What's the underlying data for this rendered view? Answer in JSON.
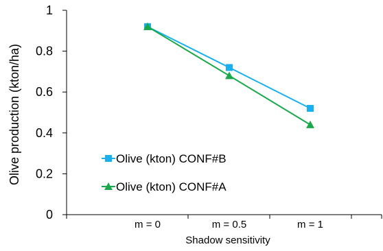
{
  "chart_data": {
    "type": "line",
    "categories": [
      "m = 0",
      "m = 0.5",
      "m = 1"
    ],
    "series": [
      {
        "name": "Olive (kton) CONF#B",
        "values": [
          0.92,
          0.72,
          0.52
        ],
        "color": "#1ab0f0",
        "marker": "square"
      },
      {
        "name": "Olive (kton) CONF#A",
        "values": [
          0.92,
          0.68,
          0.44
        ],
        "color": "#1aa84a",
        "marker": "triangle"
      }
    ],
    "xlabel": "Shadow sensitivity",
    "ylabel": "Olive production (kton/ha)",
    "ylim": [
      0,
      1
    ],
    "yticks": [
      "0",
      "0.2",
      "0.4",
      "0.6",
      "0.8",
      "1"
    ],
    "grid": false,
    "legend_position": "lower-left inside plot"
  }
}
